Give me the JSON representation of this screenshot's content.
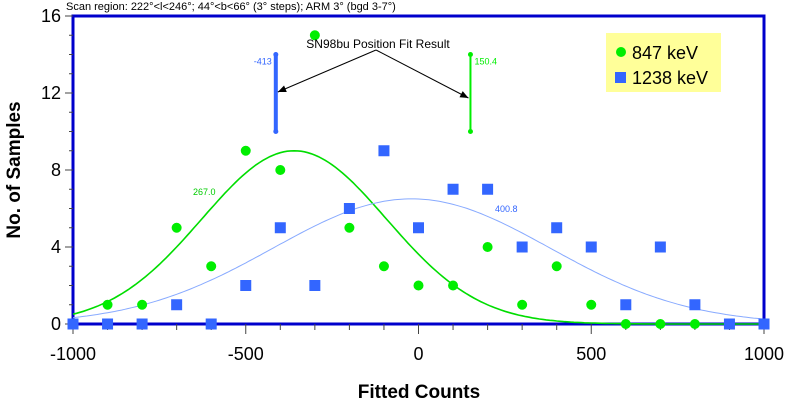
{
  "chart_data": {
    "type": "scatter",
    "title": "Scan region: 222°<l<246°; 44°<b<66° (3° steps); ARM 3° (bgd 3-7°)",
    "xlabel": "Fitted Counts",
    "ylabel": "No. of Samples",
    "xlim": [
      -1000,
      1000
    ],
    "ylim": [
      0,
      16
    ],
    "xticks": [
      -1000,
      -500,
      0,
      500,
      1000
    ],
    "yticks": [
      0,
      4,
      8,
      12,
      16
    ],
    "grid": false,
    "legend_placement": "top-right",
    "legend_bg": "#ffff99",
    "series": [
      {
        "name": "847 keV",
        "marker": "circle",
        "color": "#00ee00",
        "x": [
          -900,
          -800,
          -700,
          -600,
          -500,
          -400,
          -300,
          -200,
          -100,
          0,
          100,
          200,
          300,
          400,
          500,
          600,
          700,
          800
        ],
        "y": [
          1,
          1,
          5,
          3,
          9,
          8,
          15,
          5,
          3,
          2,
          2,
          4,
          1,
          3,
          1,
          0,
          0,
          0
        ],
        "fit": {
          "mean": -360,
          "sigma": 267,
          "amplitude": 9,
          "label": "267.0"
        },
        "position_fit": {
          "value": -413,
          "label": "-413"
        }
      },
      {
        "name": "1238 keV",
        "marker": "square",
        "color": "#3366ff",
        "x": [
          -1000,
          -900,
          -800,
          -700,
          -600,
          -500,
          -400,
          -300,
          -200,
          -100,
          0,
          100,
          200,
          300,
          400,
          500,
          600,
          700,
          800,
          900,
          1000
        ],
        "y": [
          0,
          0,
          0,
          1,
          0,
          2,
          5,
          2,
          6,
          9,
          5,
          7,
          7,
          4,
          5,
          4,
          1,
          4,
          1,
          0,
          0
        ],
        "fit": {
          "mean": -20,
          "sigma": 401,
          "amplitude": 6.5,
          "label": "400.8"
        },
        "position_fit": {
          "value": 150.4,
          "label": "150.4"
        }
      }
    ],
    "annotation": "SN98bu Position Fit Result",
    "error_bar_range": [
      10,
      14
    ]
  }
}
